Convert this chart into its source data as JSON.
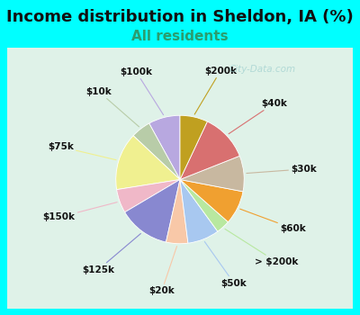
{
  "title": "Income distribution in Sheldon, IA (%)",
  "subtitle": "All residents",
  "title_fontsize": 13,
  "subtitle_fontsize": 11,
  "title_color": "#111111",
  "subtitle_color": "#2a9d6e",
  "background_outer": "#00ffff",
  "background_inner_top": "#d8f0e8",
  "background_inner_bottom": "#e8f8f0",
  "watermark": "City-Data.com",
  "labels": [
    "$100k",
    "$10k",
    "$75k",
    "$150k",
    "$125k",
    "$20k",
    "$50k",
    "> $200k",
    "$60k",
    "$30k",
    "$40k",
    "$200k"
  ],
  "values": [
    8.0,
    5.0,
    14.5,
    6.0,
    13.0,
    5.5,
    8.0,
    3.5,
    8.5,
    9.0,
    12.0,
    7.0
  ],
  "colors": [
    "#b8a8e0",
    "#b8cca8",
    "#f0f090",
    "#f0b8c8",
    "#8888d0",
    "#f8c8a8",
    "#a8c8f0",
    "#b8e8a0",
    "#f0a030",
    "#c8b8a0",
    "#d87070",
    "#c0a020"
  ],
  "label_fontsize": 7.5,
  "label_color": "#111111",
  "startangle": 90,
  "labeldistance": 1.25
}
